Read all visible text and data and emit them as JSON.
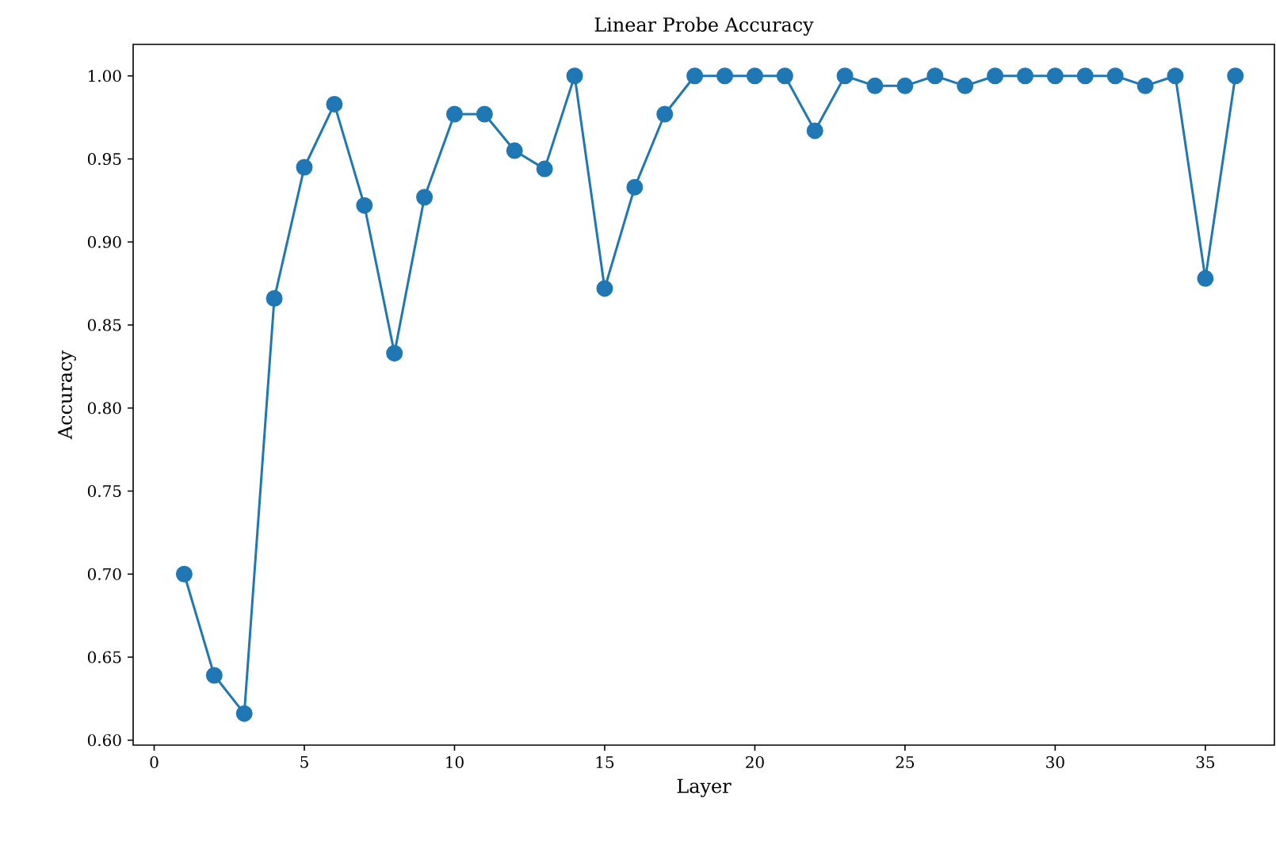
{
  "chart_data": {
    "type": "line",
    "title": "Linear Probe Accuracy",
    "xlabel": "Layer",
    "ylabel": "Accuracy",
    "x": [
      1,
      2,
      3,
      4,
      5,
      6,
      7,
      8,
      9,
      10,
      11,
      12,
      13,
      14,
      15,
      16,
      17,
      18,
      19,
      20,
      21,
      22,
      23,
      24,
      25,
      26,
      27,
      28,
      29,
      30,
      31,
      32,
      33,
      34,
      35,
      36
    ],
    "series": [
      {
        "color": "#1f77b4",
        "values": [
          0.7,
          0.639,
          0.616,
          0.866,
          0.945,
          0.983,
          0.922,
          0.833,
          0.927,
          0.977,
          0.977,
          0.955,
          0.944,
          1.0,
          0.872,
          0.933,
          0.977,
          1.0,
          1.0,
          1.0,
          1.0,
          0.967,
          1.0,
          0.994,
          0.994,
          1.0,
          0.994,
          1.0,
          1.0,
          1.0,
          1.0,
          1.0,
          0.994,
          1.0,
          0.878,
          1.0
        ]
      }
    ],
    "xlim": [
      -0.7,
      37.3
    ],
    "ylim": [
      0.597,
      1.019
    ],
    "xticks": [
      0,
      5,
      10,
      15,
      20,
      25,
      30,
      35
    ],
    "yticks": [
      {
        "value": 0.6,
        "label": "0.60"
      },
      {
        "value": 0.65,
        "label": "0.65"
      },
      {
        "value": 0.7,
        "label": "0.70"
      },
      {
        "value": 0.75,
        "label": "0.75"
      },
      {
        "value": 0.8,
        "label": "0.80"
      },
      {
        "value": 0.85,
        "label": "0.85"
      },
      {
        "value": 0.9,
        "label": "0.90"
      },
      {
        "value": 0.95,
        "label": "0.95"
      },
      {
        "value": 1.0,
        "label": "1.00"
      }
    ],
    "marker": "circle",
    "line_style": "solid",
    "grid": false,
    "legend": false
  }
}
